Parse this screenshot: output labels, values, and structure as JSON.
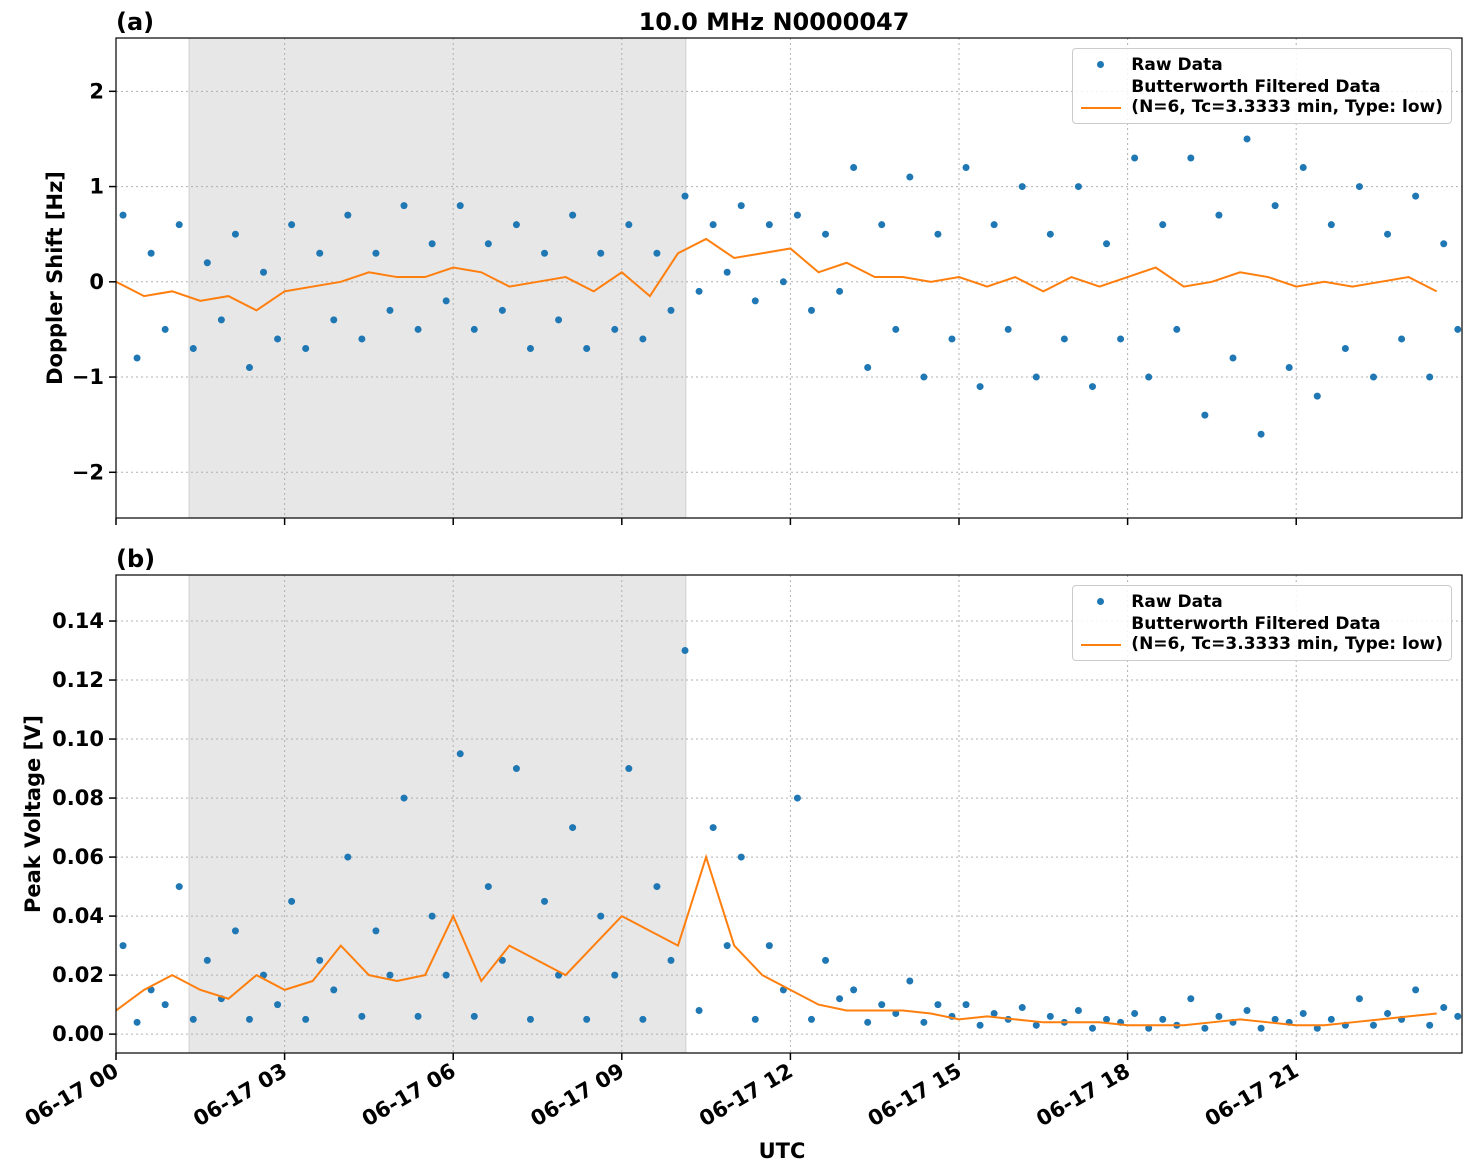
{
  "chart_data": [
    {
      "type": "scatter_line",
      "panel_label": "(a)",
      "title": "10.0 MHz N0000047",
      "ylabel": "Doppler Shift [Hz]",
      "xlim": [
        0,
        23.95
      ],
      "ylim": [
        -2.48,
        2.56
      ],
      "xticks": [
        0,
        3,
        6,
        9,
        12,
        15,
        18,
        21
      ],
      "yticks": [
        {
          "value": -2,
          "label": "−2"
        },
        {
          "value": -1,
          "label": "−1"
        },
        0,
        1,
        2
      ],
      "grid": true,
      "shaded_span": [
        1.3,
        10.14
      ],
      "legend": "upper right",
      "series": [
        {
          "name": "Raw Data",
          "color": "#1f77b4",
          "style": "points",
          "x": [
            0.125,
            0.375,
            0.625,
            0.875,
            1.125,
            1.375,
            1.625,
            1.875,
            2.125,
            2.375,
            2.625,
            2.875,
            3.125,
            3.375,
            3.625,
            3.875,
            4.125,
            4.375,
            4.625,
            4.875,
            5.125,
            5.375,
            5.625,
            5.875,
            6.125,
            6.375,
            6.625,
            6.875,
            7.125,
            7.375,
            7.625,
            7.875,
            8.125,
            8.375,
            8.625,
            8.875,
            9.125,
            9.375,
            9.625,
            9.875,
            10.125,
            10.375,
            10.625,
            10.875,
            11.125,
            11.375,
            11.625,
            11.875,
            12.125,
            12.375,
            12.625,
            12.875,
            13.125,
            13.375,
            13.625,
            13.875,
            14.125,
            14.375,
            14.625,
            14.875,
            15.125,
            15.375,
            15.625,
            15.875,
            16.125,
            16.375,
            16.625,
            16.875,
            17.125,
            17.375,
            17.625,
            17.875,
            18.125,
            18.375,
            18.625,
            18.875,
            19.125,
            19.375,
            19.625,
            19.875,
            20.125,
            20.375,
            20.625,
            20.875,
            21.125,
            21.375,
            21.625,
            21.875,
            22.125,
            22.375,
            22.625,
            22.875,
            23.125,
            23.375,
            23.625,
            23.875
          ],
          "values": [
            0.7,
            -0.8,
            0.3,
            -0.5,
            0.6,
            -0.7,
            0.2,
            -0.4,
            0.5,
            -0.9,
            0.1,
            -0.6,
            0.6,
            -0.7,
            0.3,
            -0.4,
            0.7,
            -0.6,
            0.3,
            -0.3,
            0.8,
            -0.5,
            0.4,
            -0.2,
            0.8,
            -0.5,
            0.4,
            -0.3,
            0.6,
            -0.7,
            0.3,
            -0.4,
            0.7,
            -0.7,
            0.3,
            -0.5,
            0.6,
            -0.6,
            0.3,
            -0.3,
            0.9,
            -0.1,
            0.6,
            0.1,
            0.8,
            -0.2,
            0.6,
            0.0,
            0.7,
            -0.3,
            0.5,
            -0.1,
            1.2,
            -0.9,
            0.6,
            -0.5,
            1.1,
            -1.0,
            0.5,
            -0.6,
            1.2,
            -1.1,
            0.6,
            -0.5,
            1.0,
            -1.0,
            0.5,
            -0.6,
            1.0,
            -1.1,
            0.4,
            -0.6,
            1.3,
            -1.0,
            0.6,
            -0.5,
            1.3,
            -1.4,
            0.7,
            -0.8,
            1.5,
            -1.6,
            0.8,
            -0.9,
            1.2,
            -1.2,
            0.6,
            -0.7,
            1.0,
            -1.0,
            0.5,
            -0.6,
            0.9,
            -1.0,
            0.4,
            -0.5
          ]
        },
        {
          "name": "Butterworth Filtered Data\n(N=6, Tc=3.3333 min, Type: low)",
          "color": "#ff7f0e",
          "style": "line",
          "x": [
            0,
            0.5,
            1,
            1.5,
            2,
            2.5,
            3,
            3.5,
            4,
            4.5,
            5,
            5.5,
            6,
            6.5,
            7,
            7.5,
            8,
            8.5,
            9,
            9.5,
            10,
            10.5,
            11,
            11.5,
            12,
            12.5,
            13,
            13.5,
            14,
            14.5,
            15,
            15.5,
            16,
            16.5,
            17,
            17.5,
            18,
            18.5,
            19,
            19.5,
            20,
            20.5,
            21,
            21.5,
            22,
            22.5,
            23,
            23.5
          ],
          "values": [
            0.0,
            -0.15,
            -0.1,
            -0.2,
            -0.15,
            -0.3,
            -0.1,
            -0.05,
            0.0,
            0.1,
            0.05,
            0.05,
            0.15,
            0.1,
            -0.05,
            0.0,
            0.05,
            -0.1,
            0.1,
            -0.15,
            0.3,
            0.45,
            0.25,
            0.3,
            0.35,
            0.1,
            0.2,
            0.05,
            0.05,
            0.0,
            0.05,
            -0.05,
            0.05,
            -0.1,
            0.05,
            -0.05,
            0.05,
            0.15,
            -0.05,
            0.0,
            0.1,
            0.05,
            -0.05,
            0.0,
            -0.05,
            0.0,
            0.05,
            -0.1
          ]
        }
      ]
    },
    {
      "type": "scatter_line",
      "panel_label": "(b)",
      "ylabel": "Peak Voltage [V]",
      "xlabel": "UTC",
      "xlim": [
        0,
        23.95
      ],
      "ylim": [
        -0.0064,
        0.1556
      ],
      "xticks": [
        {
          "value": 0,
          "label": "06-17 00"
        },
        {
          "value": 3,
          "label": "06-17 03"
        },
        {
          "value": 6,
          "label": "06-17 06"
        },
        {
          "value": 9,
          "label": "06-17 09"
        },
        {
          "value": 12,
          "label": "06-17 12"
        },
        {
          "value": 15,
          "label": "06-17 15"
        },
        {
          "value": 18,
          "label": "06-17 18"
        },
        {
          "value": 21,
          "label": "06-17 21"
        }
      ],
      "yticks": [
        {
          "value": 0,
          "label": "0.00"
        },
        {
          "value": 0.02,
          "label": "0.02"
        },
        {
          "value": 0.04,
          "label": "0.04"
        },
        {
          "value": 0.06,
          "label": "0.06"
        },
        {
          "value": 0.08,
          "label": "0.08"
        },
        {
          "value": 0.1,
          "label": "0.10"
        },
        {
          "value": 0.12,
          "label": "0.12"
        },
        {
          "value": 0.14,
          "label": "0.14"
        }
      ],
      "grid": true,
      "shaded_span": [
        1.3,
        10.14
      ],
      "legend": "upper right",
      "series": [
        {
          "name": "Raw Data",
          "color": "#1f77b4",
          "style": "points",
          "x": [
            0.125,
            0.375,
            0.625,
            0.875,
            1.125,
            1.375,
            1.625,
            1.875,
            2.125,
            2.375,
            2.625,
            2.875,
            3.125,
            3.375,
            3.625,
            3.875,
            4.125,
            4.375,
            4.625,
            4.875,
            5.125,
            5.375,
            5.625,
            5.875,
            6.125,
            6.375,
            6.625,
            6.875,
            7.125,
            7.375,
            7.625,
            7.875,
            8.125,
            8.375,
            8.625,
            8.875,
            9.125,
            9.375,
            9.625,
            9.875,
            10.125,
            10.375,
            10.625,
            10.875,
            11.125,
            11.375,
            11.625,
            11.875,
            12.125,
            12.375,
            12.625,
            12.875,
            13.125,
            13.375,
            13.625,
            13.875,
            14.125,
            14.375,
            14.625,
            14.875,
            15.125,
            15.375,
            15.625,
            15.875,
            16.125,
            16.375,
            16.625,
            16.875,
            17.125,
            17.375,
            17.625,
            17.875,
            18.125,
            18.375,
            18.625,
            18.875,
            19.125,
            19.375,
            19.625,
            19.875,
            20.125,
            20.375,
            20.625,
            20.875,
            21.125,
            21.375,
            21.625,
            21.875,
            22.125,
            22.375,
            22.625,
            22.875,
            23.125,
            23.375,
            23.625,
            23.875
          ],
          "values": [
            0.03,
            0.004,
            0.015,
            0.01,
            0.05,
            0.005,
            0.025,
            0.012,
            0.035,
            0.005,
            0.02,
            0.01,
            0.045,
            0.005,
            0.025,
            0.015,
            0.06,
            0.006,
            0.035,
            0.02,
            0.08,
            0.006,
            0.04,
            0.02,
            0.095,
            0.006,
            0.05,
            0.025,
            0.09,
            0.005,
            0.045,
            0.02,
            0.07,
            0.005,
            0.04,
            0.02,
            0.09,
            0.005,
            0.05,
            0.025,
            0.13,
            0.008,
            0.07,
            0.03,
            0.06,
            0.005,
            0.03,
            0.015,
            0.08,
            0.005,
            0.025,
            0.012,
            0.015,
            0.004,
            0.01,
            0.007,
            0.018,
            0.004,
            0.01,
            0.006,
            0.01,
            0.003,
            0.007,
            0.005,
            0.009,
            0.003,
            0.006,
            0.004,
            0.008,
            0.002,
            0.005,
            0.004,
            0.007,
            0.002,
            0.005,
            0.003,
            0.012,
            0.002,
            0.006,
            0.004,
            0.008,
            0.002,
            0.005,
            0.004,
            0.007,
            0.002,
            0.005,
            0.003,
            0.012,
            0.003,
            0.007,
            0.005,
            0.015,
            0.003,
            0.009,
            0.006
          ]
        },
        {
          "name": "Butterworth Filtered Data\n(N=6, Tc=3.3333 min, Type: low)",
          "color": "#ff7f0e",
          "style": "line",
          "x": [
            0,
            0.5,
            1,
            1.5,
            2,
            2.5,
            3,
            3.5,
            4,
            4.5,
            5,
            5.5,
            6,
            6.5,
            7,
            7.5,
            8,
            8.5,
            9,
            9.5,
            10,
            10.5,
            11,
            11.5,
            12,
            12.5,
            13,
            13.5,
            14,
            14.5,
            15,
            15.5,
            16,
            16.5,
            17,
            17.5,
            18,
            18.5,
            19,
            19.5,
            20,
            20.5,
            21,
            21.5,
            22,
            22.5,
            23,
            23.5
          ],
          "values": [
            0.008,
            0.015,
            0.02,
            0.015,
            0.012,
            0.02,
            0.015,
            0.018,
            0.03,
            0.02,
            0.018,
            0.02,
            0.04,
            0.018,
            0.03,
            0.025,
            0.02,
            0.03,
            0.04,
            0.035,
            0.03,
            0.06,
            0.03,
            0.02,
            0.015,
            0.01,
            0.008,
            0.008,
            0.008,
            0.007,
            0.005,
            0.006,
            0.005,
            0.004,
            0.004,
            0.004,
            0.003,
            0.003,
            0.003,
            0.004,
            0.005,
            0.004,
            0.003,
            0.003,
            0.004,
            0.005,
            0.006,
            0.007
          ]
        }
      ]
    }
  ]
}
